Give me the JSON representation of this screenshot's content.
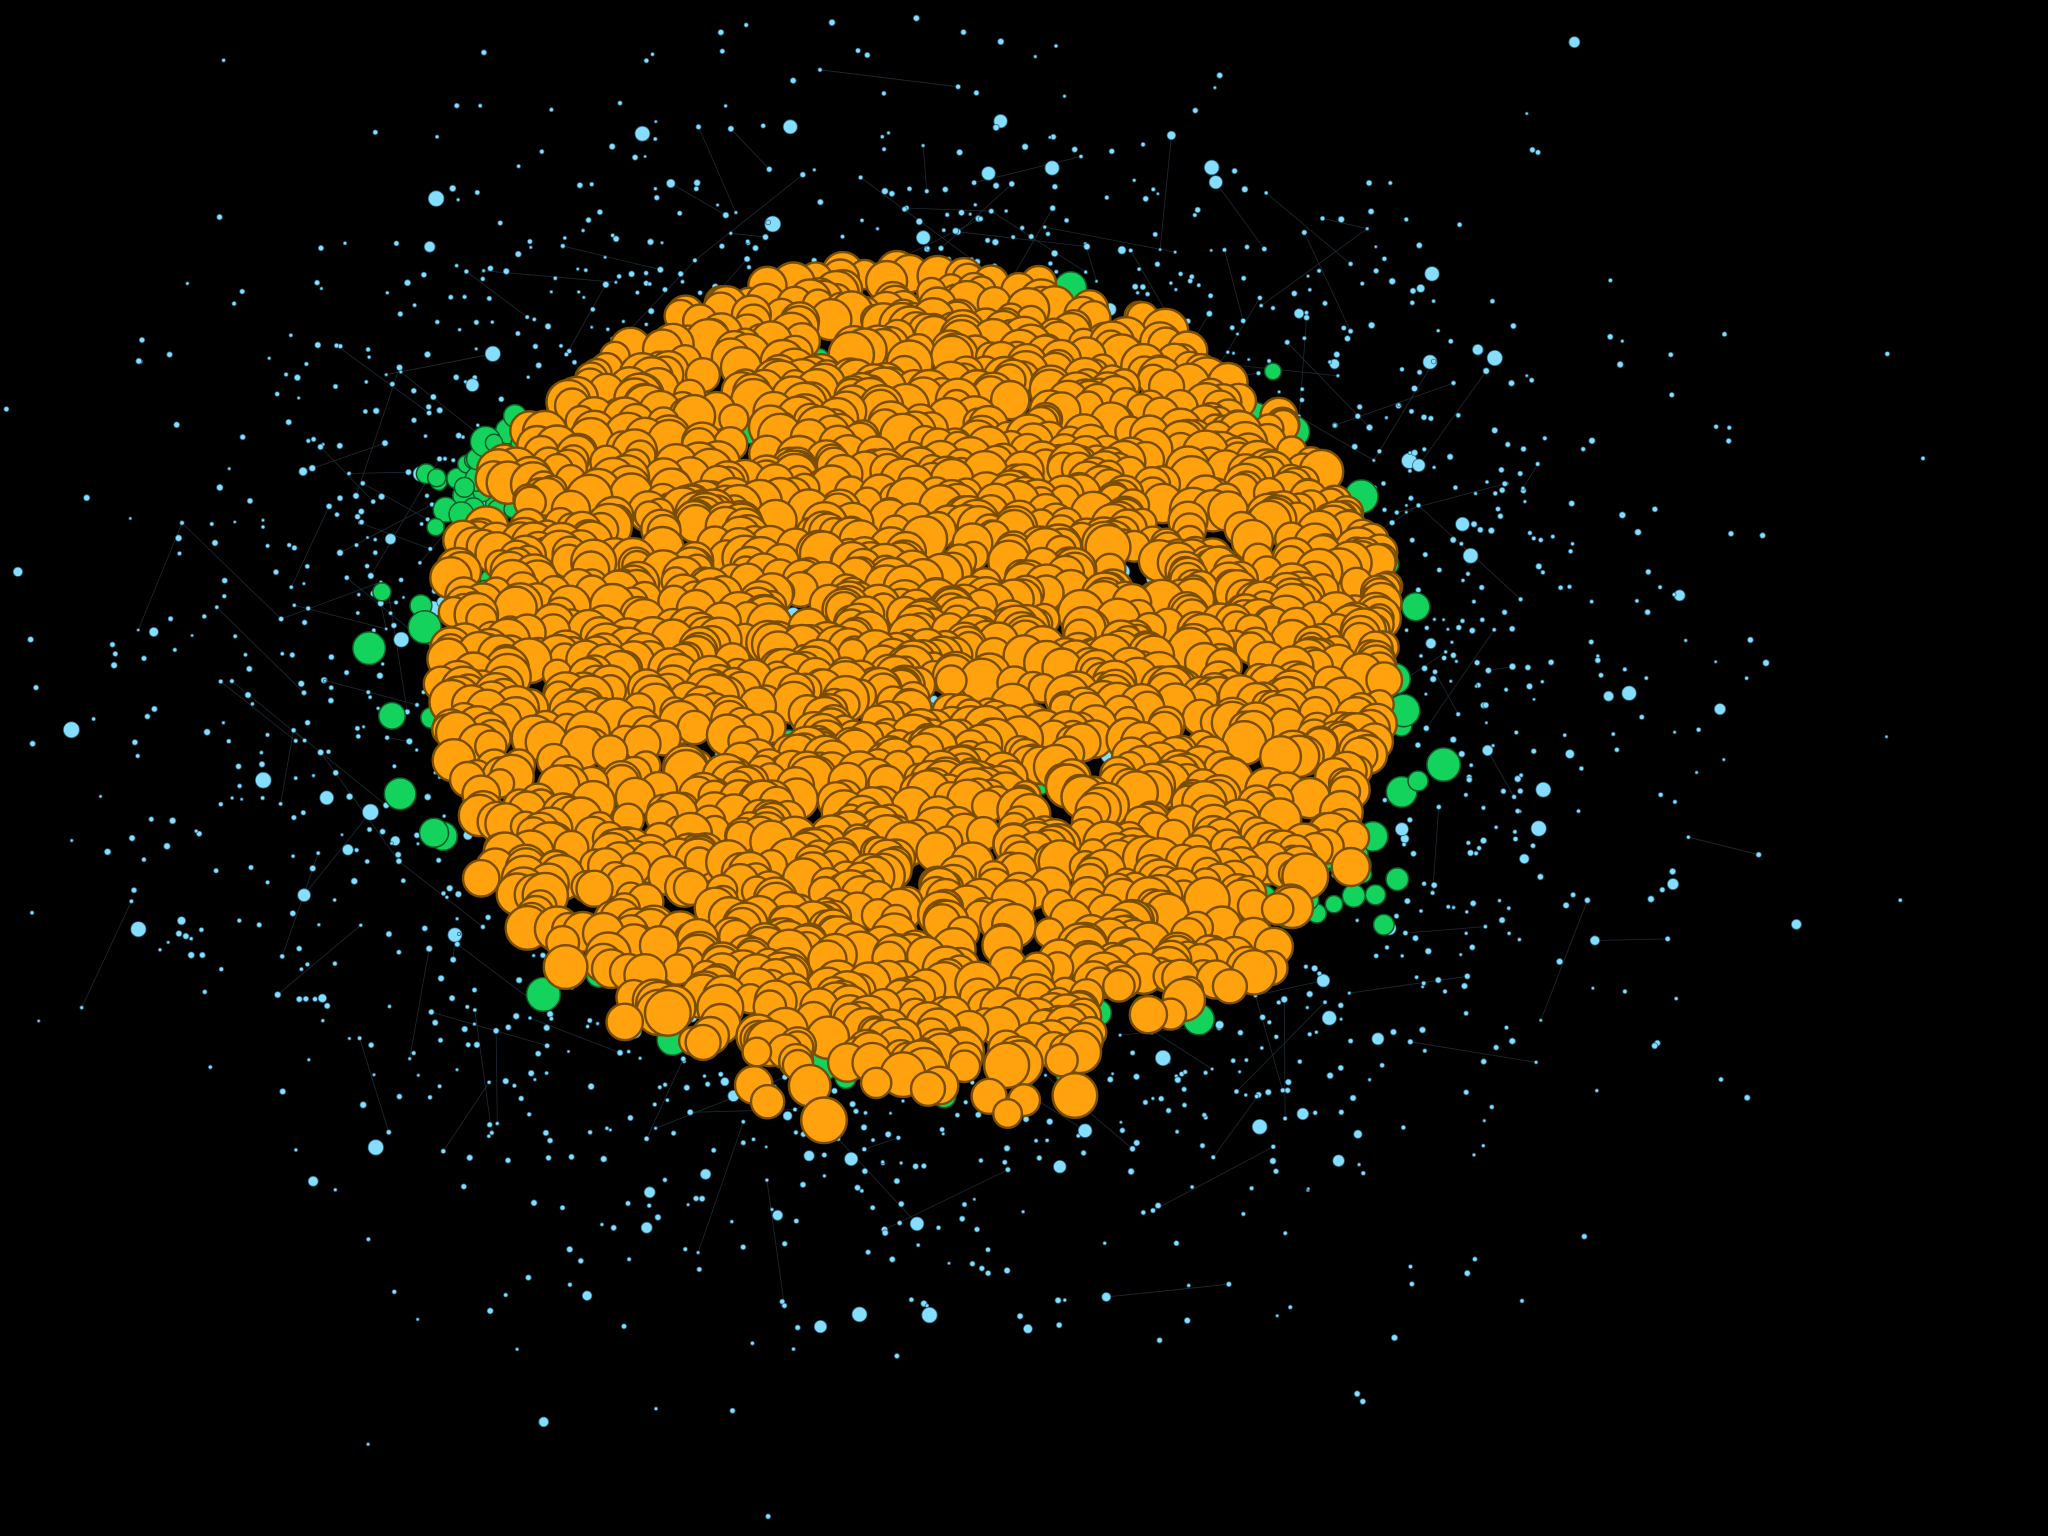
{
  "diagram": {
    "type": "network-graph",
    "background_color": "#000000",
    "edge_color": "#1e2a33",
    "node_groups": [
      {
        "key": "hub",
        "fill": "#FFA20E",
        "stroke": "#7A4E00",
        "relative_count": 0.46,
        "relative_size": 1.0
      },
      {
        "key": "bridge",
        "fill": "#13D35C",
        "stroke": "#0B5A2A",
        "relative_count": 0.07,
        "relative_size": 0.55
      },
      {
        "key": "periphery",
        "fill": "#86DEFF",
        "stroke": "#2A6B85",
        "relative_count": 0.47,
        "relative_size": 0.2
      }
    ]
  }
}
